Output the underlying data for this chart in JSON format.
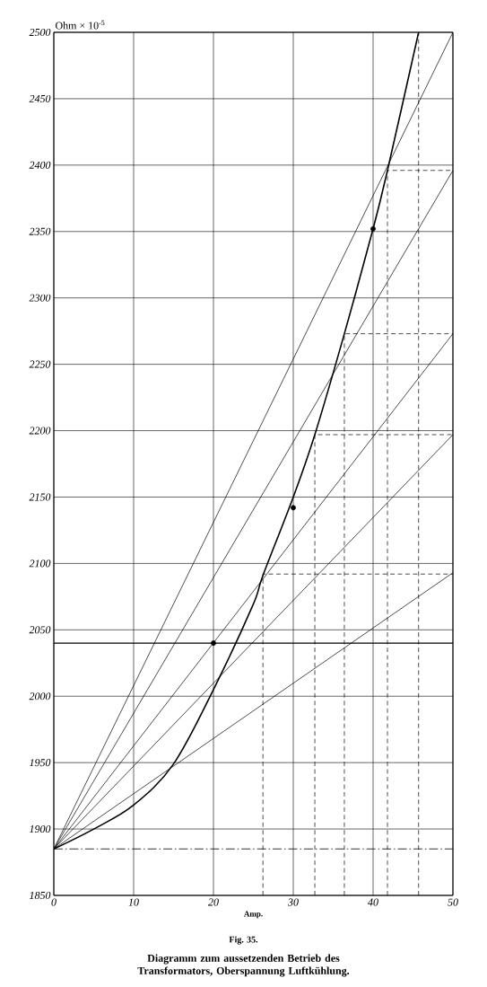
{
  "chart_data": {
    "type": "line",
    "xlabel": "Amp.",
    "ylabel": "Ohm × 10$^{-5}$",
    "annotations": [
      "Fig. 35.",
      "Diagramm zum aussetzenden Betrieb des Transformators, Oberspannung Luftkühlung."
    ],
    "xlim": [
      0,
      50
    ],
    "ylim": [
      1850,
      2500
    ],
    "xticks": [
      0,
      10,
      20,
      30,
      40,
      50
    ],
    "yticks": [
      1850,
      1900,
      1950,
      2000,
      2050,
      2100,
      2150,
      2200,
      2250,
      2300,
      2350,
      2400,
      2450,
      2500
    ],
    "grid": true,
    "series": [
      {
        "color": "#000000",
        "x": [
          0,
          5,
          10,
          15,
          20,
          24.9,
          26.2,
          30,
          32.7,
          36.4,
          40,
          41.8,
          45.7
        ],
        "values": [
          1885,
          1900,
          1918,
          1949,
          2005,
          2068,
          2091,
          2150,
          2197,
          2273,
          2352,
          2396,
          2500
        ]
      },
      {
        "color": "#000000",
        "x": [
          0,
          50
        ],
        "values": [
          1885,
          2500
        ]
      },
      {
        "color": "#000000",
        "x": [
          0,
          50
        ],
        "values": [
          1885,
          2396
        ]
      },
      {
        "color": "#000000",
        "x": [
          0,
          50
        ],
        "values": [
          1885,
          2273
        ]
      },
      {
        "color": "#000000",
        "x": [
          0,
          50
        ],
        "values": [
          1885,
          2197
        ]
      },
      {
        "color": "#000000",
        "x": [
          0,
          50
        ],
        "values": [
          1885,
          2093
        ]
      },
      {
        "color": "#000000",
        "line_style": "dashed",
        "x": [
          26.2,
          26.2,
          50
        ],
        "values": [
          1850,
          2092,
          2092
        ]
      },
      {
        "color": "#000000",
        "line_style": "dashed",
        "x": [
          32.7,
          32.7,
          50
        ],
        "values": [
          1850,
          2197,
          2197
        ]
      },
      {
        "color": "#000000",
        "line_style": "dashed",
        "x": [
          36.4,
          36.4,
          50
        ],
        "values": [
          1850,
          2273,
          2273
        ]
      },
      {
        "color": "#000000",
        "line_style": "dashed",
        "x": [
          41.8,
          41.8,
          50
        ],
        "values": [
          1850,
          2396,
          2396
        ]
      },
      {
        "color": "#000000",
        "line_style": "dashed",
        "x": [
          45.7,
          45.7
        ],
        "values": [
          1850,
          2500
        ]
      },
      {
        "type": "scatter",
        "color": "#000000",
        "x": [
          20,
          30,
          40
        ],
        "values": [
          2040,
          2142,
          2352
        ]
      }
    ],
    "ref_lines": [
      {
        "axis": "y",
        "value": 2040,
        "color": "#000000",
        "line_style": "solid"
      },
      {
        "axis": "y",
        "value": 1885,
        "color": "#000000",
        "line_style": "dashed"
      }
    ]
  }
}
